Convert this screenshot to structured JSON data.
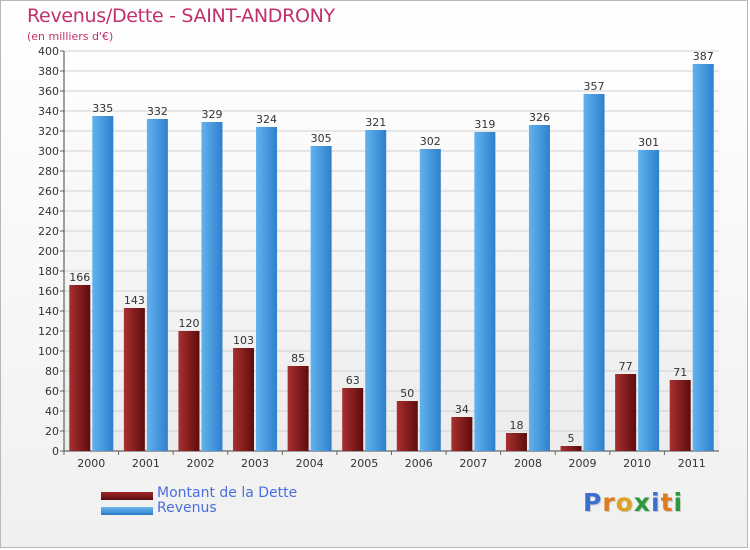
{
  "title": "Revenus/Dette - SAINT-ANDRONY",
  "subtitle": "(en milliers d'€)",
  "logo": {
    "text": "Proxiti",
    "letter_colors": [
      "#3a6fd0",
      "#e07a20",
      "#e0a020",
      "#2c9a3a",
      "#3a6fd0",
      "#e07a20",
      "#2c9a3a"
    ]
  },
  "colors": {
    "dette": "#7a1a1a",
    "revenus": "#4a9de0",
    "title": "#c0306a",
    "legend_text": "#4a6ee0"
  },
  "chart_data": {
    "type": "bar",
    "categories": [
      "2000",
      "2001",
      "2002",
      "2003",
      "2004",
      "2005",
      "2006",
      "2007",
      "2008",
      "2009",
      "2010",
      "2011"
    ],
    "series": [
      {
        "name": "Montant de la Dette",
        "values": [
          166,
          143,
          120,
          103,
          85,
          63,
          50,
          34,
          18,
          5,
          77,
          71
        ]
      },
      {
        "name": "Revenus",
        "values": [
          335,
          332,
          329,
          324,
          305,
          321,
          302,
          319,
          326,
          357,
          301,
          387
        ]
      }
    ],
    "title": "Revenus/Dette - SAINT-ANDRONY",
    "ylabel": "(en milliers d'€)",
    "ylim": [
      0,
      400
    ],
    "ytick_step": 20,
    "grid": true,
    "legend_position": "bottom-left"
  }
}
